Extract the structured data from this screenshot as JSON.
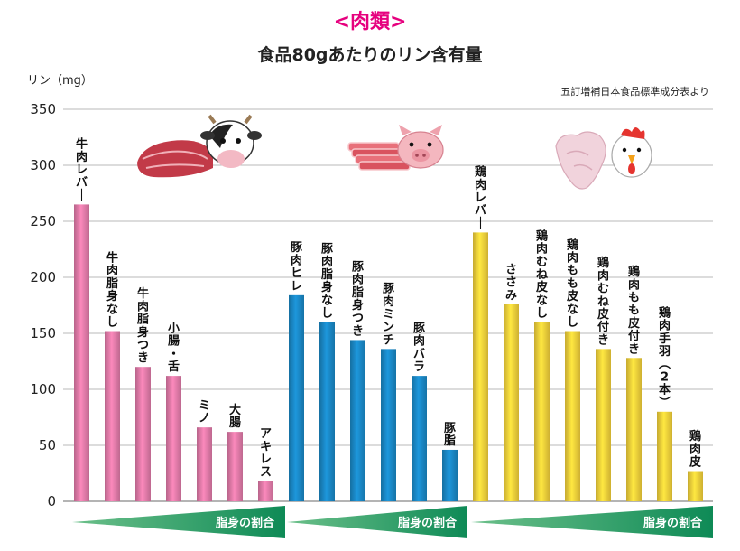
{
  "title": "<肉類>",
  "subtitle": "食品80gあたりのリン含有量",
  "source": "五訂増補日本食品標準成分表より",
  "chart_data": {
    "type": "bar",
    "ylabel": "リン（mg）",
    "ylim": [
      0,
      350
    ],
    "yticks": [
      0,
      50,
      100,
      150,
      200,
      250,
      300,
      350
    ],
    "grid": true,
    "groups": [
      {
        "color": "#e07aa8",
        "wedge_label": "脂身の割合",
        "icon": "beef-cow-icon",
        "bars": [
          {
            "label": "牛肉レバー",
            "value": 265
          },
          {
            "label": "牛肉脂身なし",
            "value": 152
          },
          {
            "label": "牛肉脂身つき",
            "value": 120
          },
          {
            "label": "小腸・舌",
            "value": 112
          },
          {
            "label": "ミノ",
            "value": 66
          },
          {
            "label": "大腸",
            "value": 62
          },
          {
            "label": "アキレス",
            "value": 18
          }
        ]
      },
      {
        "color": "#1a87c4",
        "wedge_label": "脂身の割合",
        "icon": "pork-pig-icon",
        "bars": [
          {
            "label": "豚肉ヒレ",
            "value": 184
          },
          {
            "label": "豚肉脂身なし",
            "value": 160
          },
          {
            "label": "豚肉脂身つき",
            "value": 144
          },
          {
            "label": "豚肉ミンチ",
            "value": 136
          },
          {
            "label": "豚肉バラ",
            "value": 112
          },
          {
            "label": "豚脂",
            "value": 46
          }
        ]
      },
      {
        "color": "#f2cf3a",
        "wedge_label": "脂身の割合",
        "icon": "chicken-icon",
        "bars": [
          {
            "label": "鶏肉レバー",
            "value": 240
          },
          {
            "label": "ささみ",
            "value": 176
          },
          {
            "label": "鶏肉むね皮なし",
            "value": 160
          },
          {
            "label": "鶏肉もも皮なし",
            "value": 152
          },
          {
            "label": "鶏肉むね皮付き",
            "value": 136
          },
          {
            "label": "鶏肉もも皮付き",
            "value": 128
          },
          {
            "label": "鶏肉手羽（2本）",
            "value": 80
          },
          {
            "label": "鶏肉皮",
            "value": 27
          }
        ]
      }
    ]
  }
}
